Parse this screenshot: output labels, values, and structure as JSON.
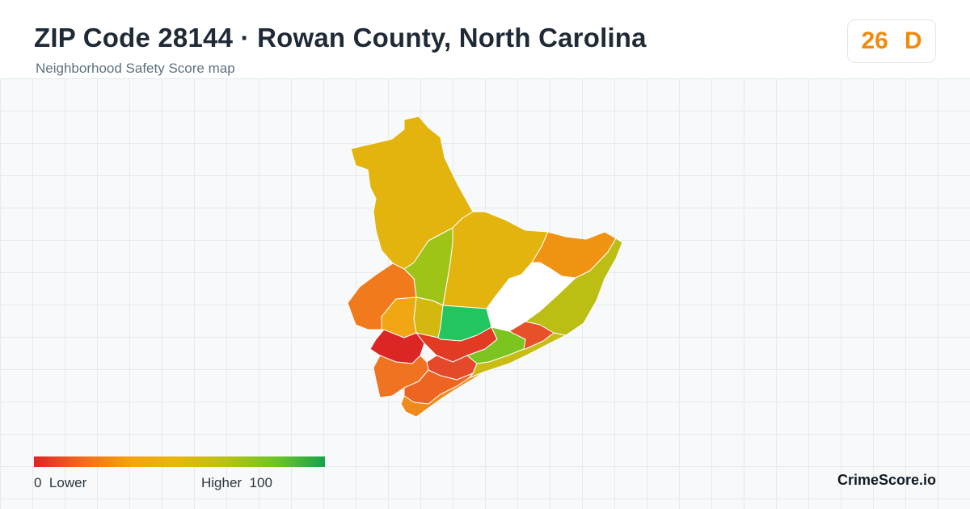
{
  "header": {
    "title": "ZIP Code 28144 · Rowan County, North Carolina",
    "subtitle": "Neighborhood Safety Score map"
  },
  "score": {
    "value": "26",
    "grade": "D",
    "color": "#f28b0c"
  },
  "legend": {
    "min_value": "0",
    "min_label": "Lower",
    "max_label": "Higher",
    "max_value": "100",
    "gradient": [
      "#dc2626",
      "#f26b1d",
      "#f5a30d",
      "#e6b80a",
      "#b4c214",
      "#6cc427",
      "#16a34a"
    ]
  },
  "map": {
    "empty_area_color": "#ffffff",
    "region_colors": {
      "north-large": "#e2b40d",
      "north-central": "#e2b40d",
      "northeast": "#f09313",
      "east-strip": "#bcbe14",
      "west-green": "#9ec418",
      "west-orange": "#f07a1c",
      "mid-left": "#f0a713",
      "mid-yellow": "#d3b90e",
      "central-green": "#22c55e",
      "south-red-1": "#dc2626",
      "south-red-2": "#e23a23",
      "south-red-3": "#e4492a",
      "south-orange-1": "#ef7320",
      "south-orange-2": "#ed6520",
      "south-orange-3": "#f08a1a",
      "south-green": "#7cc41f",
      "east-red": "#e8502a",
      "southeast-strip": "#c9bc14"
    }
  },
  "brand": {
    "name": "CrimeScore.io"
  }
}
